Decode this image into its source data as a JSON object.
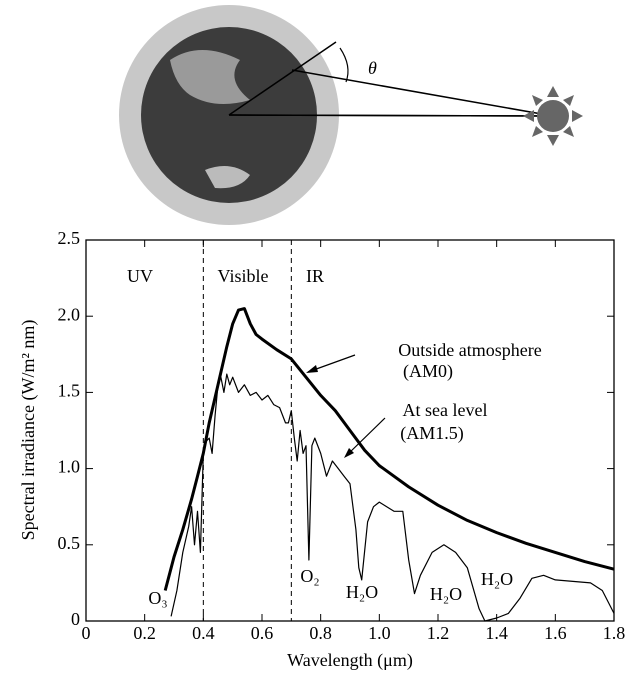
{
  "chart_data": {
    "type": "line",
    "xlabel": "Wavelength (μm)",
    "ylabel": "Spectral irradiance (W/m² nm)",
    "xlim": [
      0,
      1.8
    ],
    "ylim": [
      0,
      2.5
    ],
    "xticks": [
      0,
      0.2,
      0.4,
      0.6,
      0.8,
      {
        "value": 1,
        "label": "1.0"
      },
      1.2,
      1.4,
      1.6,
      1.8
    ],
    "yticks": [
      0,
      0.5,
      {
        "value": 1,
        "label": "1.0"
      },
      1.5,
      {
        "value": 2,
        "label": "2.0"
      },
      2.5
    ],
    "dividers": [
      0.4,
      0.7
    ],
    "regions": [
      "UV",
      "Visible",
      "IR"
    ],
    "annotations": [
      "O₃",
      "O₂",
      "H₂O",
      "H₂O",
      "H₂O"
    ],
    "angle_label": "θ",
    "series": [
      {
        "name": "Outside atmosphere",
        "label": "(AM0)",
        "color": "#000000",
        "width": 3,
        "x": [
          0.27,
          0.3,
          0.33,
          0.36,
          0.38,
          0.4,
          0.42,
          0.45,
          0.48,
          0.5,
          0.52,
          0.54,
          0.56,
          0.58,
          0.6,
          0.65,
          0.7,
          0.75,
          0.8,
          0.85,
          0.9,
          0.95,
          1.0,
          1.1,
          1.2,
          1.3,
          1.4,
          1.5,
          1.6,
          1.7,
          1.8
        ],
        "values": [
          0.2,
          0.42,
          0.6,
          0.8,
          0.95,
          1.1,
          1.3,
          1.55,
          1.8,
          1.95,
          2.04,
          2.05,
          1.95,
          1.88,
          1.85,
          1.78,
          1.72,
          1.6,
          1.48,
          1.38,
          1.25,
          1.12,
          1.02,
          0.88,
          0.76,
          0.66,
          0.58,
          0.51,
          0.45,
          0.39,
          0.34
        ]
      },
      {
        "name": "At sea level",
        "label": "(AM1.5)",
        "color": "#000000",
        "width": 1.2,
        "x": [
          0.29,
          0.31,
          0.33,
          0.35,
          0.36,
          0.37,
          0.38,
          0.39,
          0.4,
          0.41,
          0.42,
          0.43,
          0.44,
          0.45,
          0.46,
          0.47,
          0.48,
          0.49,
          0.5,
          0.52,
          0.54,
          0.56,
          0.58,
          0.6,
          0.62,
          0.64,
          0.66,
          0.68,
          0.69,
          0.7,
          0.71,
          0.72,
          0.73,
          0.74,
          0.75,
          0.76,
          0.77,
          0.78,
          0.8,
          0.82,
          0.84,
          0.86,
          0.88,
          0.9,
          0.92,
          0.93,
          0.94,
          0.96,
          0.98,
          1.0,
          1.05,
          1.08,
          1.1,
          1.12,
          1.14,
          1.18,
          1.22,
          1.26,
          1.3,
          1.34,
          1.36,
          1.4,
          1.44,
          1.48,
          1.52,
          1.56,
          1.6,
          1.66,
          1.72,
          1.76,
          1.8
        ],
        "values": [
          0.03,
          0.2,
          0.45,
          0.62,
          0.75,
          0.5,
          0.72,
          0.45,
          1.1,
          1.18,
          1.2,
          1.1,
          1.35,
          1.55,
          1.6,
          1.5,
          1.62,
          1.55,
          1.6,
          1.5,
          1.55,
          1.48,
          1.5,
          1.45,
          1.48,
          1.42,
          1.4,
          1.3,
          1.3,
          1.38,
          1.2,
          1.05,
          1.25,
          1.1,
          1.15,
          0.4,
          1.15,
          1.2,
          1.1,
          0.95,
          1.05,
          1.0,
          0.95,
          0.9,
          0.6,
          0.35,
          0.27,
          0.65,
          0.75,
          0.78,
          0.72,
          0.72,
          0.4,
          0.18,
          0.3,
          0.45,
          0.5,
          0.45,
          0.35,
          0.08,
          0.0,
          0.02,
          0.05,
          0.15,
          0.28,
          0.3,
          0.27,
          0.26,
          0.25,
          0.2,
          0.05
        ]
      }
    ]
  }
}
